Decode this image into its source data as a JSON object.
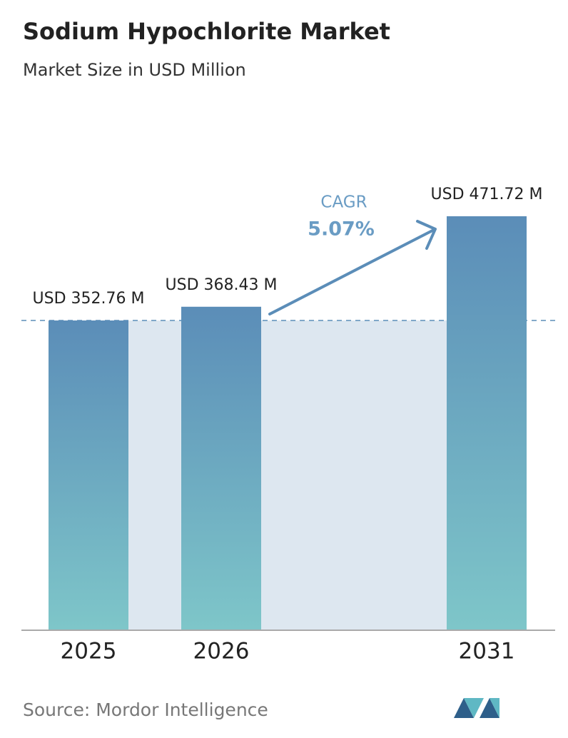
{
  "chart_data": {
    "type": "bar",
    "title": "Sodium Hypochlorite Market",
    "subtitle": "Market Size in USD Million",
    "categories": [
      "2025",
      "2026",
      "2031"
    ],
    "values": [
      352.76,
      368.43,
      471.72
    ],
    "value_labels": [
      "USD 352.76 M",
      "USD 368.43 M",
      "USD 471.72 M"
    ],
    "color_top": "#5b8db8",
    "color_bottom": "#7ec6c9",
    "annotation": {
      "label": "CAGR",
      "value": "5.07%"
    },
    "source": "Source:  Mordor Intelligence"
  }
}
